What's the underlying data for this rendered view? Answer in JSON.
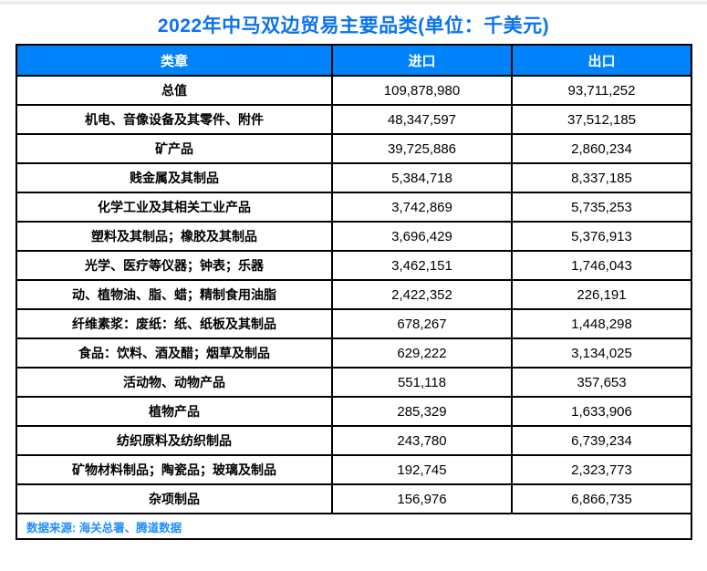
{
  "title": "2022年中马双边贸易主要品类(单位：千美元)",
  "table": {
    "headers": [
      "类章",
      "进口",
      "出口"
    ],
    "rows": [
      {
        "category": "总值",
        "import": "109,878,980",
        "export": "93,711,252"
      },
      {
        "category": "机电、音像设备及其零件、附件",
        "import": "48,347,597",
        "export": "37,512,185"
      },
      {
        "category": "矿产品",
        "import": "39,725,886",
        "export": "2,860,234"
      },
      {
        "category": "贱金属及其制品",
        "import": "5,384,718",
        "export": "8,337,185"
      },
      {
        "category": "化学工业及其相关工业产品",
        "import": "3,742,869",
        "export": "5,735,253"
      },
      {
        "category": "塑料及其制品；橡胶及其制品",
        "import": "3,696,429",
        "export": "5,376,913"
      },
      {
        "category": "光学、医疗等仪器；钟表；乐器",
        "import": "3,462,151",
        "export": "1,746,043"
      },
      {
        "category": "动、植物油、脂、蜡；精制食用油脂",
        "import": "2,422,352",
        "export": "226,191"
      },
      {
        "category": "纤维素浆：废纸：纸、纸板及其制品",
        "import": "678,267",
        "export": "1,448,298"
      },
      {
        "category": "食品：饮料、酒及醋；烟草及制品",
        "import": "629,222",
        "export": "3,134,025"
      },
      {
        "category": "活动物、动物产品",
        "import": "551,118",
        "export": "357,653"
      },
      {
        "category": "植物产品",
        "import": "285,329",
        "export": "1,633,906"
      },
      {
        "category": "纺织原料及纺织制品",
        "import": "243,780",
        "export": "6,739,234"
      },
      {
        "category": "矿物材料制品；陶瓷品；玻璃及制品",
        "import": "192,745",
        "export": "2,323,773"
      },
      {
        "category": "杂项制品",
        "import": "156,976",
        "export": "6,866,735"
      }
    ]
  },
  "footer": {
    "source": "数据来源: 海关总署、腾道数据"
  },
  "colors": {
    "title_text": "#0a73f0",
    "header_bg": "#0082fa",
    "header_text": "#ffffff",
    "source_text": "#1f8dfe",
    "border": "#000000"
  },
  "chart_data": {
    "type": "table",
    "title": "2022年中马双边贸易主要品类(单位：千美元)",
    "columns": [
      "类章",
      "进口",
      "出口"
    ],
    "rows": [
      [
        "总值",
        109878980,
        93711252
      ],
      [
        "机电、音像设备及其零件、附件",
        48347597,
        37512185
      ],
      [
        "矿产品",
        39725886,
        2860234
      ],
      [
        "贱金属及其制品",
        5384718,
        8337185
      ],
      [
        "化学工业及其相关工业产品",
        3742869,
        5735253
      ],
      [
        "塑料及其制品；橡胶及其制品",
        3696429,
        5376913
      ],
      [
        "光学、医疗等仪器；钟表；乐器",
        3462151,
        1746043
      ],
      [
        "动、植物油、脂、蜡；精制食用油脂",
        2422352,
        226191
      ],
      [
        "纤维素浆：废纸：纸、纸板及其制品",
        678267,
        1448298
      ],
      [
        "食品：饮料、酒及醋；烟草及制品",
        629222,
        3134025
      ],
      [
        "活动物、动物产品",
        551118,
        357653
      ],
      [
        "植物产品",
        285329,
        1633906
      ],
      [
        "纺织原料及纺织制品",
        243780,
        6739234
      ],
      [
        "矿物材料制品；陶瓷品；玻璃及制品",
        192745,
        2323773
      ],
      [
        "杂项制品",
        156976,
        6866735
      ]
    ],
    "footnote": "数据来源: 海关总署、腾道数据",
    "unit": "千美元"
  }
}
